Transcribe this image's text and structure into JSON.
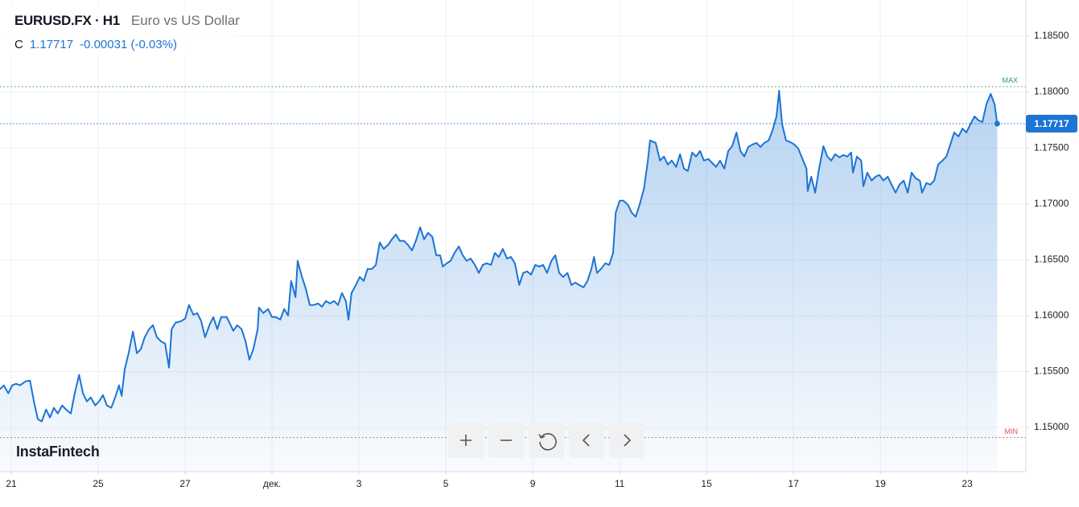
{
  "chart_data": {
    "type": "area",
    "title": "EURUSD.FX · H1",
    "subtitle": "Euro vs US Dollar",
    "price_field": "C",
    "last_price": 1.17717,
    "change_label": "-0.00031 (-0.03%)",
    "watermark": "InstaFintech",
    "grid": true,
    "xlim": [
      -0.26,
      23.35
    ],
    "ylim": [
      1.14605,
      1.18823
    ],
    "xticks": [
      {
        "value": 0,
        "label": "21"
      },
      {
        "value": 2,
        "label": "25"
      },
      {
        "value": 4,
        "label": "27"
      },
      {
        "value": 6,
        "label": "дек."
      },
      {
        "value": 8,
        "label": "3"
      },
      {
        "value": 10,
        "label": "5"
      },
      {
        "value": 12,
        "label": "9"
      },
      {
        "value": 14,
        "label": "11"
      },
      {
        "value": 16,
        "label": "15"
      },
      {
        "value": 18,
        "label": "17"
      },
      {
        "value": 20,
        "label": "19"
      },
      {
        "value": 22,
        "label": "23"
      }
    ],
    "yticks": [
      {
        "value": 1.15,
        "label": "1.15000"
      },
      {
        "value": 1.155,
        "label": "1.15500"
      },
      {
        "value": 1.16,
        "label": "1.16000"
      },
      {
        "value": 1.165,
        "label": "1.16500"
      },
      {
        "value": 1.17,
        "label": "1.17000"
      },
      {
        "value": 1.175,
        "label": "1.17500"
      },
      {
        "value": 1.18,
        "label": "1.18000"
      },
      {
        "value": 1.185,
        "label": "1.18500"
      }
    ],
    "max_line": {
      "value": 1.18048,
      "label": "MAX",
      "color": "#2e9e5b"
    },
    "min_line": {
      "value": 1.1491,
      "label": "MIN",
      "color": "#e0505a"
    },
    "series": [
      {
        "color": "#1c74d4",
        "x": [
          -0.26,
          -0.17,
          -0.07,
          0.02,
          0.11,
          0.2,
          0.33,
          0.43,
          0.52,
          0.61,
          0.7,
          0.8,
          0.89,
          0.98,
          1.07,
          1.17,
          1.26,
          1.37,
          1.46,
          1.56,
          1.65,
          1.74,
          1.83,
          1.93,
          2.02,
          2.11,
          2.2,
          2.3,
          2.39,
          2.48,
          2.54,
          2.61,
          2.7,
          2.8,
          2.89,
          2.98,
          3.07,
          3.17,
          3.26,
          3.35,
          3.44,
          3.54,
          3.63,
          3.69,
          3.78,
          3.91,
          4.0,
          4.09,
          4.19,
          4.28,
          4.37,
          4.46,
          4.56,
          4.65,
          4.74,
          4.83,
          4.96,
          5.11,
          5.2,
          5.3,
          5.39,
          5.48,
          5.57,
          5.67,
          5.7,
          5.8,
          5.91,
          6.0,
          6.09,
          6.19,
          6.28,
          6.37,
          6.44,
          6.54,
          6.59,
          6.69,
          6.78,
          6.87,
          6.96,
          7.06,
          7.15,
          7.24,
          7.33,
          7.43,
          7.52,
          7.61,
          7.7,
          7.76,
          7.83,
          7.93,
          8.02,
          8.11,
          8.2,
          8.3,
          8.39,
          8.48,
          8.57,
          8.67,
          8.76,
          8.85,
          8.94,
          9.04,
          9.13,
          9.22,
          9.31,
          9.41,
          9.5,
          9.59,
          9.69,
          9.78,
          9.87,
          9.93,
          10.02,
          10.11,
          10.2,
          10.3,
          10.39,
          10.48,
          10.57,
          10.67,
          10.76,
          10.85,
          10.94,
          11.04,
          11.13,
          11.22,
          11.31,
          11.41,
          11.5,
          11.59,
          11.69,
          11.78,
          11.87,
          11.96,
          12.06,
          12.15,
          12.24,
          12.33,
          12.43,
          12.52,
          12.61,
          12.7,
          12.8,
          12.89,
          12.98,
          13.07,
          13.17,
          13.26,
          13.35,
          13.41,
          13.48,
          13.57,
          13.67,
          13.76,
          13.85,
          13.91,
          14.0,
          14.09,
          14.19,
          14.28,
          14.37,
          14.46,
          14.56,
          14.65,
          14.7,
          14.83,
          14.93,
          15.02,
          15.11,
          15.2,
          15.3,
          15.39,
          15.48,
          15.57,
          15.67,
          15.76,
          15.85,
          15.94,
          16.04,
          16.13,
          16.22,
          16.31,
          16.41,
          16.5,
          16.59,
          16.69,
          16.78,
          16.87,
          16.96,
          17.06,
          17.15,
          17.24,
          17.33,
          17.43,
          17.52,
          17.61,
          17.67,
          17.74,
          17.83,
          17.93,
          18.02,
          18.11,
          18.2,
          18.3,
          18.33,
          18.41,
          18.5,
          18.59,
          18.69,
          18.78,
          18.87,
          18.96,
          19.06,
          19.15,
          19.24,
          19.33,
          19.37,
          19.46,
          19.56,
          19.61,
          19.7,
          19.8,
          19.89,
          19.98,
          20.07,
          20.17,
          20.26,
          20.35,
          20.44,
          20.54,
          20.63,
          20.72,
          20.81,
          20.91,
          20.96,
          21.06,
          21.15,
          21.24,
          21.33,
          21.43,
          21.52,
          21.61,
          21.7,
          21.8,
          21.89,
          21.98,
          22.07,
          22.17,
          22.26,
          22.35,
          22.44,
          22.54,
          22.63,
          22.69
        ],
        "values": [
          1.15341,
          1.15377,
          1.15305,
          1.15377,
          1.15391,
          1.15377,
          1.15413,
          1.1542,
          1.15233,
          1.15075,
          1.15054,
          1.15161,
          1.15089,
          1.15176,
          1.15125,
          1.15197,
          1.15161,
          1.15125,
          1.15305,
          1.1547,
          1.15305,
          1.15233,
          1.15269,
          1.15197,
          1.15233,
          1.1529,
          1.15197,
          1.15176,
          1.15269,
          1.15377,
          1.15283,
          1.1552,
          1.15664,
          1.15858,
          1.15664,
          1.157,
          1.15807,
          1.15879,
          1.15915,
          1.15807,
          1.15772,
          1.1575,
          1.15535,
          1.15879,
          1.15937,
          1.15951,
          1.15973,
          1.16095,
          1.16008,
          1.16023,
          1.15951,
          1.15807,
          1.15915,
          1.15987,
          1.15879,
          1.15987,
          1.15987,
          1.15865,
          1.15915,
          1.15879,
          1.15772,
          1.15606,
          1.157,
          1.15879,
          1.16073,
          1.16023,
          1.16059,
          1.15987,
          1.15987,
          1.15965,
          1.16059,
          1.16001,
          1.1631,
          1.16166,
          1.1649,
          1.16346,
          1.16238,
          1.16095,
          1.16095,
          1.16109,
          1.1608,
          1.16131,
          1.16109,
          1.16131,
          1.16095,
          1.16202,
          1.16131,
          1.15965,
          1.16202,
          1.16274,
          1.16346,
          1.1631,
          1.16418,
          1.16418,
          1.16454,
          1.16655,
          1.16597,
          1.16633,
          1.16683,
          1.16726,
          1.16669,
          1.16669,
          1.16633,
          1.16583,
          1.16669,
          1.16791,
          1.16683,
          1.16741,
          1.16705,
          1.1654,
          1.1654,
          1.16439,
          1.16468,
          1.1649,
          1.16561,
          1.16619,
          1.1654,
          1.1649,
          1.16511,
          1.16454,
          1.16382,
          1.16454,
          1.16468,
          1.16454,
          1.16561,
          1.16525,
          1.16597,
          1.16511,
          1.16525,
          1.16468,
          1.16274,
          1.16382,
          1.16396,
          1.16367,
          1.16454,
          1.16439,
          1.16454,
          1.16382,
          1.1649,
          1.1654,
          1.16382,
          1.16346,
          1.16382,
          1.16274,
          1.16296,
          1.16274,
          1.16253,
          1.1631,
          1.16418,
          1.16525,
          1.16382,
          1.16418,
          1.16468,
          1.16454,
          1.16561,
          1.1692,
          1.17028,
          1.17028,
          1.16992,
          1.1692,
          1.16884,
          1.16992,
          1.17136,
          1.17387,
          1.17567,
          1.17545,
          1.17387,
          1.17423,
          1.17351,
          1.17387,
          1.1733,
          1.17444,
          1.17315,
          1.17294,
          1.17459,
          1.17423,
          1.17473,
          1.17387,
          1.17401,
          1.17366,
          1.1733,
          1.17387,
          1.17315,
          1.17473,
          1.17516,
          1.17638,
          1.17473,
          1.17423,
          1.17509,
          1.17531,
          1.17545,
          1.17509,
          1.17545,
          1.17567,
          1.1766,
          1.17782,
          1.18012,
          1.1771,
          1.17567,
          1.17552,
          1.17531,
          1.17495,
          1.17409,
          1.17315,
          1.17114,
          1.17243,
          1.171,
          1.17315,
          1.17516,
          1.17423,
          1.17387,
          1.17444,
          1.17416,
          1.17437,
          1.17423,
          1.17459,
          1.17279,
          1.17423,
          1.17387,
          1.17157,
          1.17279,
          1.17208,
          1.17243,
          1.17258,
          1.17208,
          1.17243,
          1.17172,
          1.171,
          1.17172,
          1.17208,
          1.171,
          1.17279,
          1.17229,
          1.17208,
          1.171,
          1.17186,
          1.17172,
          1.17208,
          1.17351,
          1.17387,
          1.17423,
          1.17531,
          1.17638,
          1.17602,
          1.17674,
          1.17638,
          1.1771,
          1.17782,
          1.17746,
          1.17732,
          1.1789,
          1.17983,
          1.1789,
          1.17717
        ]
      }
    ]
  }
}
